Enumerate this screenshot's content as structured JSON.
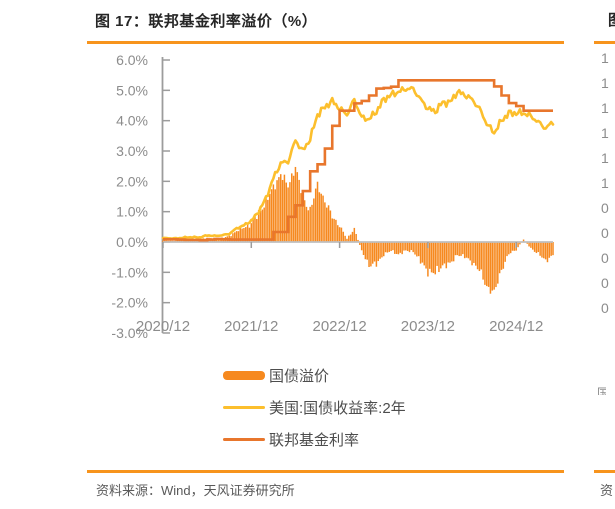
{
  "title": {
    "text": "图 17：联邦基金利率溢价（%）"
  },
  "source": {
    "text": "资料来源：Wind，天风证券研究所"
  },
  "colors": {
    "accent_rule": "#F7941D",
    "bar": "#F6891F",
    "yield_line": "#FCBF2D",
    "ffr_line": "#E8762C",
    "axis_text": "#8C8C8C",
    "axis_line": "#9C9C9C",
    "zero_line": "#BFBFBF"
  },
  "legend": {
    "items": [
      {
        "label": "国债溢价",
        "swatch": "bar",
        "color": "#F6891F"
      },
      {
        "label": "美国:国债收益率:2年",
        "swatch": "line",
        "color": "#FCBF2D"
      },
      {
        "label": "联邦基金利率",
        "swatch": "line",
        "color": "#E8762C"
      }
    ]
  },
  "chart_data": {
    "type": "combo (bar + line + step-line)",
    "start_month": "2020-12",
    "end_month": "2025-05",
    "x_axis": {
      "ticks": [
        {
          "label": "2020/12",
          "month_index": 0
        },
        {
          "label": "2021/12",
          "month_index": 12
        },
        {
          "label": "2022/12",
          "month_index": 24
        },
        {
          "label": "2023/12",
          "month_index": 36
        },
        {
          "label": "2024/12",
          "month_index": 48
        }
      ]
    },
    "y_axis": {
      "min": -3,
      "max": 6,
      "grid": false,
      "ticks": [
        {
          "label": "6.0%",
          "value": 6
        },
        {
          "label": "5.0%",
          "value": 5
        },
        {
          "label": "4.0%",
          "value": 4
        },
        {
          "label": "3.0%",
          "value": 3
        },
        {
          "label": "2.0%",
          "value": 2
        },
        {
          "label": "1.0%",
          "value": 1
        },
        {
          "label": "0.0%",
          "value": 0
        },
        {
          "label": "-1.0%",
          "value": -1
        },
        {
          "label": "-2.0%",
          "value": -2
        },
        {
          "label": "-3.0%",
          "value": -3
        }
      ]
    },
    "series": [
      {
        "name": "国债溢价",
        "type": "bar",
        "color": "#F6891F",
        "values": [
          0.05,
          0.04,
          0.05,
          0.08,
          0.09,
          0.09,
          0.14,
          0.1,
          0.13,
          0.19,
          0.37,
          0.47,
          0.62,
          0.92,
          1.37,
          1.77,
          2.27,
          1.82,
          2.52,
          1.42,
          1.07,
          1.87,
          1.37,
          0.82,
          0.55,
          0.1,
          0.45,
          -0.3,
          -0.75,
          -0.75,
          -0.4,
          -0.3,
          -0.4,
          -0.3,
          -0.3,
          -0.65,
          -0.95,
          -1.05,
          -0.75,
          -0.75,
          -0.4,
          -0.5,
          -0.65,
          -0.95,
          -1.45,
          -1.7,
          -0.9,
          -0.4,
          -0.25,
          0.08,
          -0.2,
          -0.4,
          -0.6,
          -0.45
        ]
      },
      {
        "name": "美国:国债收益率:2年",
        "type": "line",
        "color": "#FCBF2D",
        "values": [
          0.13,
          0.12,
          0.12,
          0.15,
          0.16,
          0.15,
          0.22,
          0.2,
          0.22,
          0.27,
          0.45,
          0.55,
          0.7,
          1.0,
          1.45,
          2.1,
          2.6,
          2.65,
          3.35,
          3.0,
          3.4,
          4.2,
          4.45,
          4.65,
          4.4,
          4.2,
          4.7,
          4.1,
          4.05,
          4.3,
          4.7,
          4.85,
          4.95,
          5.05,
          5.05,
          4.7,
          4.4,
          4.3,
          4.6,
          4.6,
          4.95,
          4.85,
          4.7,
          4.4,
          3.9,
          3.6,
          4.0,
          4.25,
          4.25,
          4.25,
          4.15,
          3.95,
          3.75,
          3.95
        ]
      },
      {
        "name": "联邦基金利率",
        "type": "step",
        "color": "#E8762C",
        "values": [
          0.09,
          0.09,
          0.08,
          0.07,
          0.07,
          0.06,
          0.08,
          0.1,
          0.09,
          0.08,
          0.08,
          0.08,
          0.08,
          0.08,
          0.08,
          0.33,
          0.33,
          0.83,
          1.21,
          1.68,
          2.33,
          2.56,
          3.08,
          3.83,
          4.33,
          4.33,
          4.57,
          4.65,
          4.83,
          5.06,
          5.08,
          5.12,
          5.33,
          5.33,
          5.33,
          5.33,
          5.33,
          5.33,
          5.33,
          5.33,
          5.33,
          5.33,
          5.33,
          5.33,
          5.33,
          5.13,
          4.83,
          4.58,
          4.48,
          4.33,
          4.33,
          4.33,
          4.33,
          4.33
        ]
      }
    ]
  },
  "right_panel_fragment": {
    "title_fragment": "图",
    "axis_digits": [
      "1",
      "1",
      "1",
      "1",
      "1",
      "1",
      "0",
      "0",
      "0",
      "0",
      "0"
    ],
    "legend_fragment": "国",
    "source_fragment": "资"
  }
}
